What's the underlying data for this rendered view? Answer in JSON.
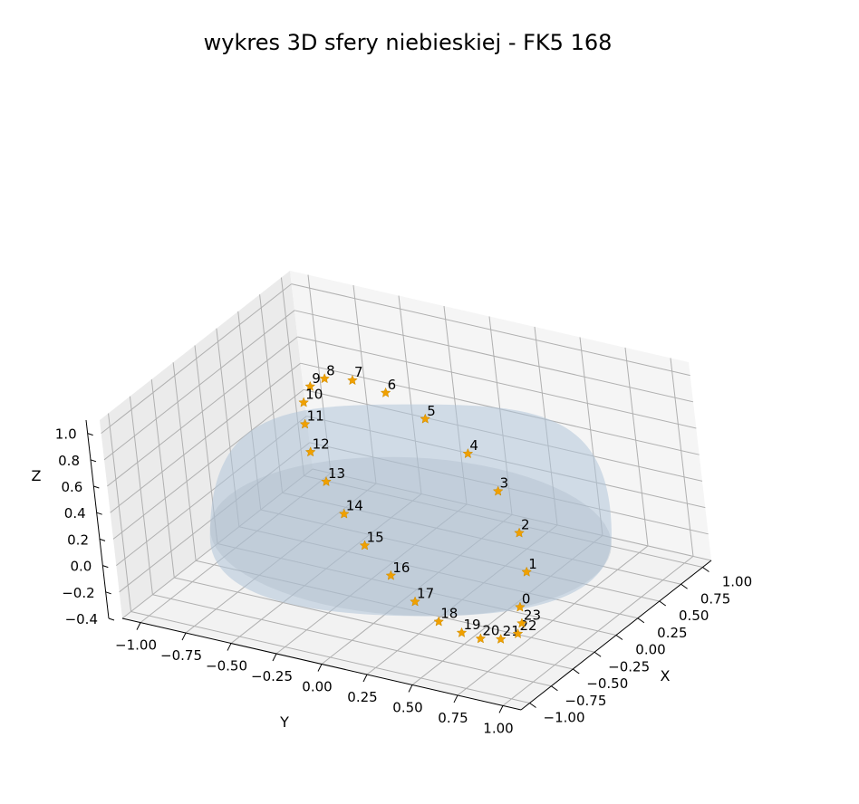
{
  "chart_data": {
    "type": "scatter",
    "title": "wykres 3D sfery niebieskiej - FK5 168",
    "xlabel": "X",
    "ylabel": "Y",
    "zlabel": "Z",
    "xticks": [
      "−1.00",
      "−0.75",
      "−0.50",
      "−0.25",
      "0.00",
      "0.25",
      "0.50",
      "0.75",
      "1.00"
    ],
    "yticks": [
      "−1.00",
      "−0.75",
      "−0.50",
      "−0.25",
      "0.00",
      "0.25",
      "0.50",
      "0.75",
      "1.00"
    ],
    "zticks": [
      "−0.4",
      "−0.2",
      "0.0",
      "0.2",
      "0.4",
      "0.6",
      "0.8",
      "1.0"
    ],
    "xlim": [
      -1.1,
      1.1
    ],
    "ylim": [
      -1.1,
      1.1
    ],
    "zlim": [
      -0.4,
      1.1
    ],
    "surface": "hemisphere",
    "surface_color": "#b0c4d8",
    "marker_color": "#f0a000",
    "marker": "star",
    "points": [
      {
        "label": "0",
        "x": 0.05,
        "y": 0.6,
        "z": -0.32
      },
      {
        "label": "1",
        "x": -0.25,
        "y": 0.5,
        "z": -0.24
      },
      {
        "label": "2",
        "x": -0.5,
        "y": 0.35,
        "z": -0.12
      },
      {
        "label": "3",
        "x": -0.7,
        "y": 0.15,
        "z": 0.03
      },
      {
        "label": "4",
        "x": -0.8,
        "y": -0.05,
        "z": 0.2
      },
      {
        "label": "5",
        "x": -0.82,
        "y": -0.28,
        "z": 0.38
      },
      {
        "label": "6",
        "x": -0.75,
        "y": -0.45,
        "z": 0.56
      },
      {
        "label": "7",
        "x": -0.6,
        "y": -0.55,
        "z": 0.7
      },
      {
        "label": "8",
        "x": -0.4,
        "y": -0.6,
        "z": 0.8
      },
      {
        "label": "9",
        "x": -0.2,
        "y": -0.58,
        "z": 0.85
      },
      {
        "label": "10",
        "x": 0.0,
        "y": -0.52,
        "z": 0.85
      },
      {
        "label": "11",
        "x": 0.2,
        "y": -0.42,
        "z": 0.82
      },
      {
        "label": "12",
        "x": 0.4,
        "y": -0.3,
        "z": 0.75
      },
      {
        "label": "13",
        "x": 0.55,
        "y": -0.15,
        "z": 0.65
      },
      {
        "label": "14",
        "x": 0.68,
        "y": 0.0,
        "z": 0.52
      },
      {
        "label": "15",
        "x": 0.78,
        "y": 0.15,
        "z": 0.38
      },
      {
        "label": "16",
        "x": 0.82,
        "y": 0.3,
        "z": 0.22
      },
      {
        "label": "17",
        "x": 0.82,
        "y": 0.42,
        "z": 0.06
      },
      {
        "label": "18",
        "x": 0.78,
        "y": 0.52,
        "z": -0.08
      },
      {
        "label": "19",
        "x": 0.7,
        "y": 0.6,
        "z": -0.18
      },
      {
        "label": "20",
        "x": 0.6,
        "y": 0.65,
        "z": -0.26
      },
      {
        "label": "21",
        "x": 0.48,
        "y": 0.7,
        "z": -0.31
      },
      {
        "label": "22",
        "x": 0.33,
        "y": 0.72,
        "z": -0.34
      },
      {
        "label": "23",
        "x": 0.2,
        "y": 0.68,
        "z": -0.34
      }
    ]
  }
}
